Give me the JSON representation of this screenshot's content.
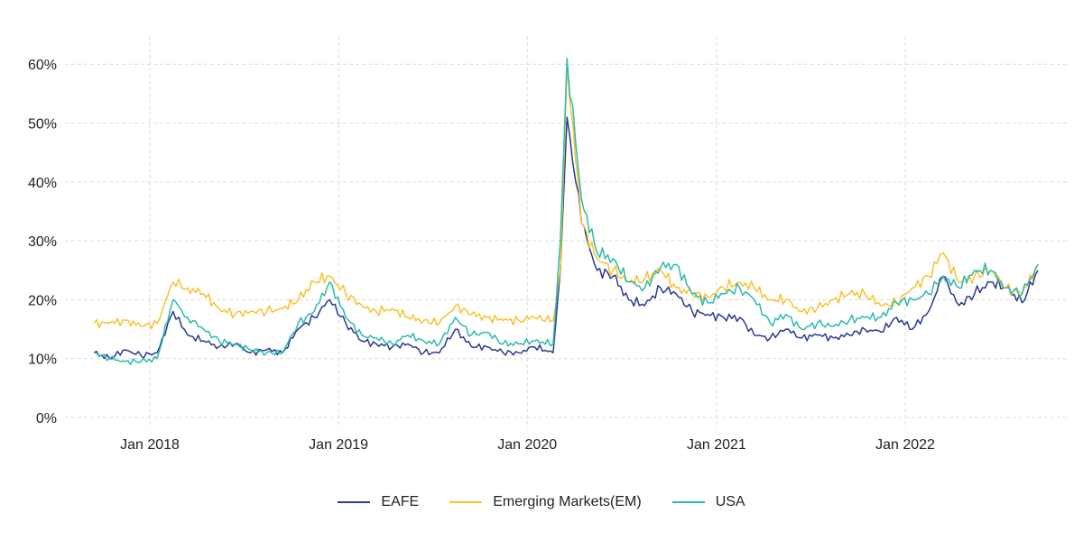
{
  "chart_data": {
    "type": "line",
    "title": "",
    "xlabel": "",
    "ylabel": "",
    "ylim": [
      0,
      60
    ],
    "yticks": [
      "0%",
      "10%",
      "20%",
      "30%",
      "40%",
      "50%",
      "60%"
    ],
    "ytick_values": [
      0,
      10,
      20,
      30,
      40,
      50,
      60
    ],
    "xticks": [
      "Jan 2018",
      "Jan 2019",
      "Jan 2020",
      "Jan 2021",
      "Jan 2022"
    ],
    "xtick_dates": [
      "2018-01-01",
      "2019-01-01",
      "2020-01-01",
      "2021-01-01",
      "2022-01-01"
    ],
    "grid": true,
    "legend_position": "bottom",
    "x": [
      "2017-09-15",
      "2017-10-15",
      "2017-11-15",
      "2017-12-15",
      "2018-01-15",
      "2018-02-15",
      "2018-03-15",
      "2018-04-15",
      "2018-05-15",
      "2018-06-15",
      "2018-07-15",
      "2018-08-15",
      "2018-09-15",
      "2018-10-15",
      "2018-11-15",
      "2018-12-15",
      "2019-01-15",
      "2019-02-15",
      "2019-03-15",
      "2019-04-15",
      "2019-05-15",
      "2019-06-15",
      "2019-07-15",
      "2019-08-15",
      "2019-09-15",
      "2019-10-15",
      "2019-11-15",
      "2019-12-15",
      "2020-01-15",
      "2020-02-20",
      "2020-03-05",
      "2020-03-18",
      "2020-04-15",
      "2020-05-15",
      "2020-06-15",
      "2020-07-15",
      "2020-08-15",
      "2020-09-15",
      "2020-10-15",
      "2020-11-15",
      "2020-12-15",
      "2021-01-15",
      "2021-02-15",
      "2021-03-15",
      "2021-04-15",
      "2021-05-15",
      "2021-06-15",
      "2021-07-15",
      "2021-08-15",
      "2021-09-15",
      "2021-10-15",
      "2021-11-15",
      "2021-12-15",
      "2022-01-15",
      "2022-02-15",
      "2022-03-15",
      "2022-04-15",
      "2022-05-15",
      "2022-06-15",
      "2022-07-15",
      "2022-08-15",
      "2022-09-15"
    ],
    "series": [
      {
        "name": "EAFE",
        "color": "#2b3990",
        "values": [
          11,
          10,
          11.5,
          10.5,
          11,
          18,
          14,
          13,
          12,
          12.5,
          11,
          11.5,
          11,
          15,
          17,
          20,
          16,
          13,
          12.5,
          12,
          12.5,
          11,
          11,
          15,
          12,
          12,
          11,
          11,
          12,
          11,
          25,
          51,
          33,
          25,
          24,
          20,
          19,
          22,
          21,
          18,
          17.5,
          17,
          17,
          14,
          13.5,
          15,
          13.5,
          14,
          13.5,
          14,
          15,
          14.5,
          17,
          15,
          18,
          24,
          19,
          21,
          23,
          22,
          19.5,
          25
        ]
      },
      {
        "name": "Emerging Markets(EM)",
        "color": "#fbc02d",
        "values": [
          16,
          16,
          16.5,
          15.5,
          16,
          23,
          22,
          21,
          18.5,
          17.5,
          18,
          18,
          18.5,
          20,
          23,
          24,
          21,
          19,
          18,
          18.5,
          17,
          16.5,
          16,
          19,
          17.5,
          17,
          16.5,
          16.5,
          17,
          16.5,
          25,
          60,
          33,
          27,
          25,
          23,
          23.5,
          25,
          22,
          21,
          20.5,
          22,
          23,
          22,
          20,
          20,
          18,
          18.5,
          20,
          21,
          21,
          19,
          19.5,
          22,
          24,
          28,
          23,
          24,
          25,
          22,
          21,
          26
        ]
      },
      {
        "name": "USA",
        "color": "#2bbbad",
        "values": [
          11,
          10,
          9.5,
          9.5,
          10,
          20,
          17,
          15,
          13,
          12.5,
          11.5,
          11,
          11,
          16,
          18,
          23,
          17,
          14,
          13.5,
          12.5,
          14,
          13,
          12.5,
          17,
          14,
          14.5,
          12.5,
          12.5,
          13,
          12.5,
          30,
          61,
          37,
          28,
          27,
          23,
          22,
          25.5,
          26,
          21,
          19.5,
          21,
          22,
          20,
          16,
          17.5,
          15,
          16,
          15.5,
          16.5,
          17,
          17,
          19.5,
          20,
          21,
          24,
          22,
          25,
          25,
          22,
          21,
          26
        ]
      }
    ]
  }
}
